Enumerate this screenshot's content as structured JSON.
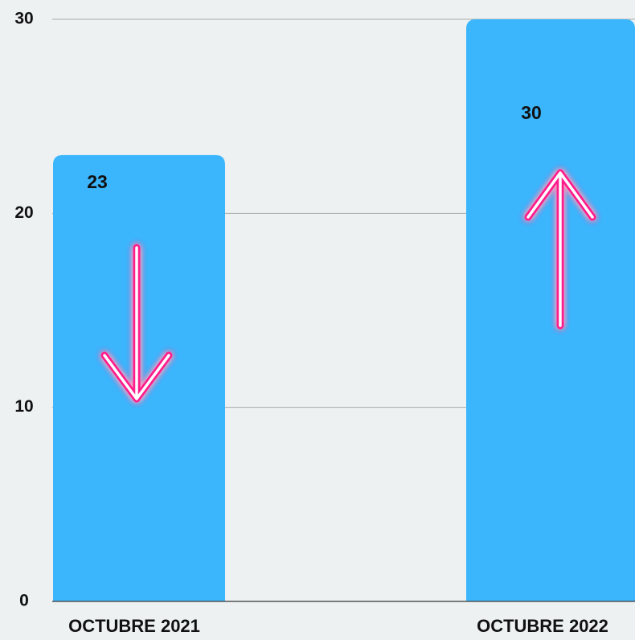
{
  "chart_data": {
    "type": "bar",
    "categories": [
      "OCTUBRE 2021",
      "OCTUBRE 2022"
    ],
    "values": [
      23,
      30
    ],
    "color": "#3bb6fd",
    "ylim": [
      0,
      30
    ],
    "yticks": [
      0,
      10,
      20,
      30
    ],
    "grid": true
  }
}
